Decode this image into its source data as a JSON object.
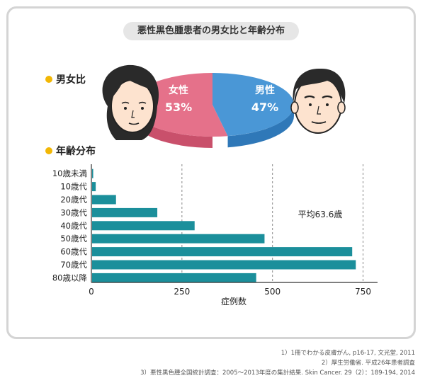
{
  "title": "悪性黒色腫患者の男女比と年齢分布",
  "sex_ratio": {
    "heading": "男女比",
    "female": {
      "label": "女性",
      "value": "53%",
      "color": "#e5718a"
    },
    "male": {
      "label": "男性",
      "value": "47%",
      "color": "#4a97d6"
    }
  },
  "age_heading": "年齢分布",
  "chart_data": [
    {
      "type": "pie",
      "categories": [
        "女性",
        "男性"
      ],
      "values": [
        53,
        47
      ]
    },
    {
      "type": "bar",
      "orientation": "horizontal",
      "categories": [
        "10歳未満",
        "10歳代",
        "20歳代",
        "30歳代",
        "40歳代",
        "50歳代",
        "60歳代",
        "70歳代",
        "80歳以降"
      ],
      "values": [
        5,
        12,
        68,
        182,
        285,
        478,
        720,
        730,
        455
      ],
      "xlabel": "症例数",
      "xlim": [
        0,
        790
      ],
      "xticks": [
        0,
        250,
        500,
        750
      ],
      "grid": "dashed vertical lines at 250, 500, 750",
      "annotation": "平均63.6歳",
      "bar_color": "#1b8f9b"
    }
  ],
  "footnotes": [
    "1）1冊でわかる皮膚がん, p16-17, 文光堂, 2011",
    "2）厚生労働省. 平成26年患者調査",
    "3）悪性黒色腫全国統計調査：2005〜2013年度の集計結果. Skin Cancer. 29（2）：189-194, 2014"
  ]
}
